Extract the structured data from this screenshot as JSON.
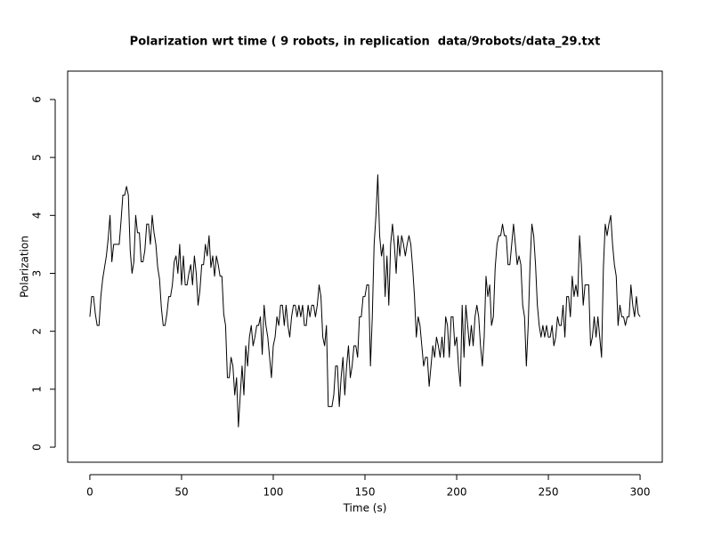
{
  "chart_data": {
    "type": "line",
    "title": "Polarization wrt time ( 9 robots, in replication  data/9robots/data_29.txt",
    "x_label": "Time (s)",
    "y_label": "Polarization",
    "xlim": [
      -12.1,
      312.1
    ],
    "ylim": [
      -0.26,
      6.49
    ],
    "xticks": [
      0,
      50,
      100,
      150,
      200,
      250,
      300
    ],
    "yticks": [
      0,
      1,
      2,
      3,
      4,
      5,
      6
    ],
    "grid": false,
    "x": [
      0,
      1,
      2,
      3,
      4,
      5,
      6,
      7,
      8,
      9,
      10,
      11,
      12,
      13,
      14,
      15,
      16,
      17,
      18,
      19,
      20,
      21,
      22,
      23,
      24,
      25,
      26,
      27,
      28,
      29,
      30,
      31,
      32,
      33,
      34,
      35,
      36,
      37,
      38,
      39,
      40,
      41,
      42,
      43,
      44,
      45,
      46,
      47,
      48,
      49,
      50,
      51,
      52,
      53,
      54,
      55,
      56,
      57,
      58,
      59,
      60,
      61,
      62,
      63,
      64,
      65,
      66,
      67,
      68,
      69,
      70,
      71,
      72,
      73,
      74,
      75,
      76,
      77,
      78,
      79,
      80,
      81,
      82,
      83,
      84,
      85,
      86,
      87,
      88,
      89,
      90,
      91,
      92,
      93,
      94,
      95,
      96,
      97,
      98,
      99,
      100,
      101,
      102,
      103,
      104,
      105,
      106,
      107,
      108,
      109,
      110,
      111,
      112,
      113,
      114,
      115,
      116,
      117,
      118,
      119,
      120,
      121,
      122,
      123,
      124,
      125,
      126,
      127,
      128,
      129,
      130,
      131,
      132,
      133,
      134,
      135,
      136,
      137,
      138,
      139,
      140,
      141,
      142,
      143,
      144,
      145,
      146,
      147,
      148,
      149,
      150,
      151,
      152,
      153,
      154,
      155,
      156,
      157,
      158,
      159,
      160,
      161,
      162,
      163,
      164,
      165,
      166,
      167,
      168,
      169,
      170,
      171,
      172,
      173,
      174,
      175,
      176,
      177,
      178,
      179,
      180,
      181,
      182,
      183,
      184,
      185,
      186,
      187,
      188,
      189,
      190,
      191,
      192,
      193,
      194,
      195,
      196,
      197,
      198,
      199,
      200,
      201,
      202,
      203,
      204,
      205,
      206,
      207,
      208,
      209,
      210,
      211,
      212,
      213,
      214,
      215,
      216,
      217,
      218,
      219,
      220,
      221,
      222,
      223,
      224,
      225,
      226,
      227,
      228,
      229,
      230,
      231,
      232,
      233,
      234,
      235,
      236,
      237,
      238,
      239,
      240,
      241,
      242,
      243,
      244,
      245,
      246,
      247,
      248,
      249,
      250,
      251,
      252,
      253,
      254,
      255,
      256,
      257,
      258,
      259,
      260,
      261,
      262,
      263,
      264,
      265,
      266,
      267,
      268,
      269,
      270,
      271,
      272,
      273,
      274,
      275,
      276,
      277,
      278,
      279,
      280,
      281,
      282,
      283,
      284,
      285,
      286,
      287,
      288,
      289,
      290,
      291,
      292,
      293,
      294,
      295,
      296,
      297,
      298,
      299,
      300
    ],
    "series": [
      {
        "name": "Polarization",
        "color": "#000000",
        "values": [
          2.25,
          2.6,
          2.6,
          2.3,
          2.1,
          2.1,
          2.6,
          2.9,
          3.1,
          3.3,
          3.6,
          4.0,
          3.2,
          3.5,
          3.5,
          3.5,
          3.5,
          3.9,
          4.35,
          4.35,
          4.5,
          4.35,
          3.4,
          3.0,
          3.2,
          4.0,
          3.7,
          3.7,
          3.2,
          3.2,
          3.4,
          3.85,
          3.85,
          3.5,
          4.0,
          3.7,
          3.5,
          3.1,
          2.9,
          2.4,
          2.1,
          2.1,
          2.3,
          2.6,
          2.6,
          2.8,
          3.2,
          3.3,
          3.0,
          3.5,
          2.8,
          3.3,
          2.8,
          2.8,
          3.0,
          3.15,
          2.8,
          3.3,
          3.0,
          2.45,
          2.7,
          3.15,
          3.15,
          3.5,
          3.3,
          3.65,
          3.1,
          3.3,
          2.95,
          3.3,
          3.15,
          2.95,
          2.95,
          2.3,
          2.1,
          1.2,
          1.2,
          1.55,
          1.4,
          0.9,
          1.2,
          0.35,
          0.9,
          1.4,
          0.9,
          1.75,
          1.4,
          1.9,
          2.1,
          1.75,
          1.9,
          2.1,
          2.1,
          2.25,
          1.6,
          2.45,
          2.1,
          1.9,
          1.55,
          1.2,
          1.75,
          1.9,
          2.25,
          2.1,
          2.45,
          2.45,
          2.1,
          2.45,
          2.1,
          1.9,
          2.25,
          2.45,
          2.45,
          2.25,
          2.45,
          2.25,
          2.45,
          2.1,
          2.1,
          2.45,
          2.25,
          2.45,
          2.45,
          2.25,
          2.45,
          2.8,
          2.6,
          1.9,
          1.75,
          2.1,
          0.7,
          0.7,
          0.7,
          0.9,
          1.4,
          1.4,
          0.7,
          1.2,
          1.55,
          0.9,
          1.4,
          1.75,
          1.2,
          1.4,
          1.75,
          1.75,
          1.55,
          2.25,
          2.25,
          2.6,
          2.6,
          2.8,
          2.8,
          1.4,
          2.25,
          3.5,
          4.0,
          4.7,
          3.65,
          3.3,
          3.5,
          2.6,
          3.3,
          2.45,
          3.5,
          3.85,
          3.5,
          3.0,
          3.65,
          3.3,
          3.65,
          3.5,
          3.3,
          3.5,
          3.65,
          3.5,
          3.1,
          2.6,
          1.9,
          2.25,
          2.1,
          1.75,
          1.4,
          1.55,
          1.55,
          1.05,
          1.4,
          1.75,
          1.55,
          1.9,
          1.75,
          1.55,
          1.9,
          1.55,
          2.25,
          2.1,
          1.55,
          2.25,
          2.25,
          1.75,
          1.9,
          1.4,
          1.05,
          2.45,
          1.55,
          2.45,
          2.1,
          1.75,
          2.1,
          1.75,
          2.25,
          2.45,
          2.25,
          1.75,
          1.4,
          1.9,
          2.95,
          2.6,
          2.8,
          2.1,
          2.25,
          3.1,
          3.5,
          3.65,
          3.65,
          3.85,
          3.65,
          3.65,
          3.15,
          3.15,
          3.5,
          3.85,
          3.5,
          3.15,
          3.3,
          3.15,
          2.45,
          2.25,
          1.4,
          2.1,
          3.15,
          3.85,
          3.65,
          3.15,
          2.45,
          2.1,
          1.9,
          2.1,
          1.9,
          2.1,
          1.9,
          1.9,
          2.1,
          1.75,
          1.9,
          2.25,
          2.1,
          2.1,
          2.45,
          1.9,
          2.6,
          2.6,
          2.25,
          2.95,
          2.6,
          2.8,
          2.6,
          3.65,
          3.15,
          2.45,
          2.8,
          2.8,
          2.8,
          1.75,
          1.9,
          2.25,
          1.9,
          2.25,
          1.9,
          1.55,
          3.1,
          3.85,
          3.65,
          3.85,
          4.0,
          3.5,
          3.15,
          2.95,
          2.1,
          2.45,
          2.25,
          2.25,
          2.1,
          2.25,
          2.25,
          2.8,
          2.45,
          2.25,
          2.6,
          2.3,
          2.25
        ]
      }
    ]
  }
}
